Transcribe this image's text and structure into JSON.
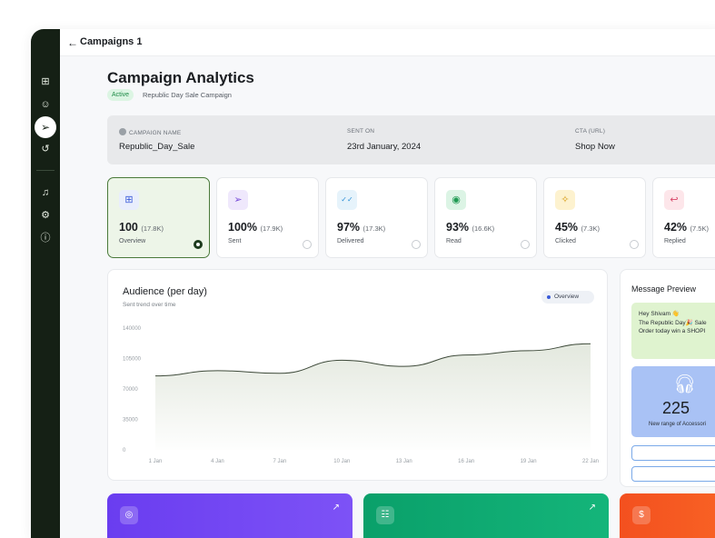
{
  "header": {
    "back_icon": "arrow-left-icon",
    "breadcrumb": "Campaigns 1"
  },
  "sidebar": {
    "items": [
      {
        "icon": "grid-icon",
        "active": false
      },
      {
        "icon": "contacts-icon",
        "active": false
      },
      {
        "icon": "send-icon",
        "active": true
      },
      {
        "icon": "history-icon",
        "active": false
      },
      {
        "icon": "bell-icon",
        "active": false
      },
      {
        "icon": "gear-icon",
        "active": false
      },
      {
        "icon": "info-icon",
        "active": false
      }
    ]
  },
  "page": {
    "title": "Campaign Analytics",
    "status": "Active",
    "subtitle": "Republic Day Sale Campaign"
  },
  "info": {
    "campaign_name_label": "CAMPAIGN NAME",
    "campaign_name": "Republic_Day_Sale",
    "sent_on_label": "SENT ON",
    "sent_on": "23rd January, 2024",
    "cta_label": "CTA (URL)",
    "cta": "Shop Now"
  },
  "stats": [
    {
      "value": "100",
      "sub": "(17.8K)",
      "label": "Overview",
      "icon": "grid-icon",
      "bg": "#e9eefc",
      "fg": "#3a5bd9",
      "selected": true
    },
    {
      "value": "100%",
      "sub": "(17.9K)",
      "label": "Sent",
      "icon": "send-icon",
      "bg": "#efe8fc",
      "fg": "#7a4fd9",
      "selected": false
    },
    {
      "value": "97%",
      "sub": "(17.3K)",
      "label": "Delivered",
      "icon": "double-check-icon",
      "bg": "#e6f3fb",
      "fg": "#2b8fd6",
      "selected": false
    },
    {
      "value": "93%",
      "sub": "(16.6K)",
      "label": "Read",
      "icon": "eye-icon",
      "bg": "#dcf4e5",
      "fg": "#1e9a52",
      "selected": false
    },
    {
      "value": "45%",
      "sub": "(7.3K)",
      "label": "Clicked",
      "icon": "click-icon",
      "bg": "#fdf2cf",
      "fg": "#d69a10",
      "selected": false
    },
    {
      "value": "42%",
      "sub": "(7.5K)",
      "label": "Replied",
      "icon": "reply-icon",
      "bg": "#fde6ea",
      "fg": "#d9486a",
      "selected": false
    }
  ],
  "chart_data": {
    "type": "area",
    "title": "Audience (per day)",
    "subtitle": "Sent trend over time",
    "legend": [
      "Overview"
    ],
    "legend_position": "top-right",
    "ylim": [
      0,
      140000
    ],
    "yticks": [
      "0",
      "35000",
      "70000",
      "105000",
      "140000"
    ],
    "xticks": [
      "1 Jan",
      "4 Jan",
      "7 Jan",
      "10 Jan",
      "13 Jan",
      "16 Jan",
      "19 Jan",
      "22 Jan"
    ],
    "x": [
      "1 Jan",
      "4 Jan",
      "7 Jan",
      "10 Jan",
      "13 Jan",
      "16 Jan",
      "19 Jan",
      "22 Jan"
    ],
    "series": [
      {
        "name": "Overview",
        "values": [
          85000,
          91000,
          88000,
          103000,
          96000,
          109000,
          114000,
          122000
        ]
      }
    ],
    "line_color": "#3e4a3a",
    "fill_color": "#e3e8de",
    "grid": false
  },
  "preview": {
    "title": "Message Preview",
    "lines": [
      "Hey Shivam 👋",
      "The Republic Day🎉 Sale",
      "Order today win a SHOPI"
    ],
    "promo_icon": "headphones-icon",
    "promo_number": "225",
    "promo_caption": "New range of Accessori"
  },
  "bottom_cards": [
    {
      "icon": "target-icon",
      "from": "#6a3df0",
      "to": "#7d52f6"
    },
    {
      "icon": "users-icon",
      "from": "#0aa06a",
      "to": "#14b57a"
    },
    {
      "icon": "dollar-icon",
      "from": "#f3501f",
      "to": "#ff7a2b"
    }
  ]
}
